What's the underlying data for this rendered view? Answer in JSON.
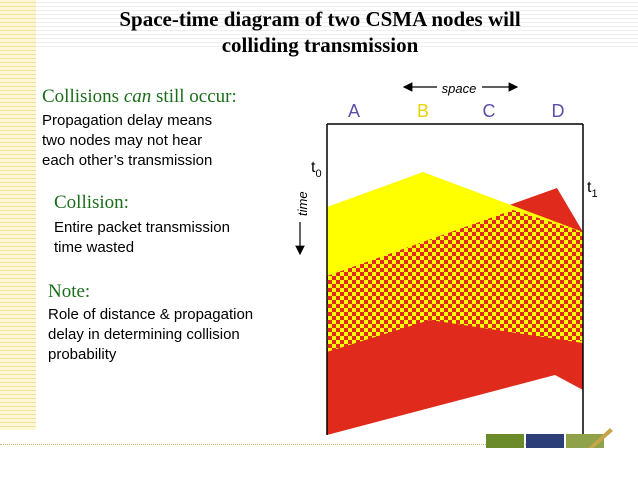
{
  "title": {
    "line1": "Space-time diagram of two CSMA nodes will",
    "line2": "colliding transmission"
  },
  "sections": [
    {
      "heading_pre": "Collisions ",
      "heading_em": "can",
      "heading_post": " still occur:",
      "lines": [
        "Propagation delay means",
        "two nodes may not hear",
        "each other’s transmission"
      ]
    },
    {
      "heading": "Collision:",
      "lines": [
        "Entire packet transmission",
        "time wasted"
      ]
    },
    {
      "heading": "Note:",
      "lines": [
        "Role of distance & propagation",
        "delay in determining collision",
        "probability"
      ]
    }
  ],
  "diagram": {
    "space_label": "space",
    "time_label": "time",
    "nodes": [
      "A",
      "B",
      "C",
      "D"
    ],
    "t0_label": "t",
    "t0_sub": "0",
    "t1_label": "t",
    "t1_sub": "1",
    "colors": {
      "node_label": "#5b4fa8",
      "node_b_label": "#e8d400",
      "yellow": "#ffff00",
      "red": "#e02a1c",
      "heading": "#1a6e1a"
    }
  }
}
